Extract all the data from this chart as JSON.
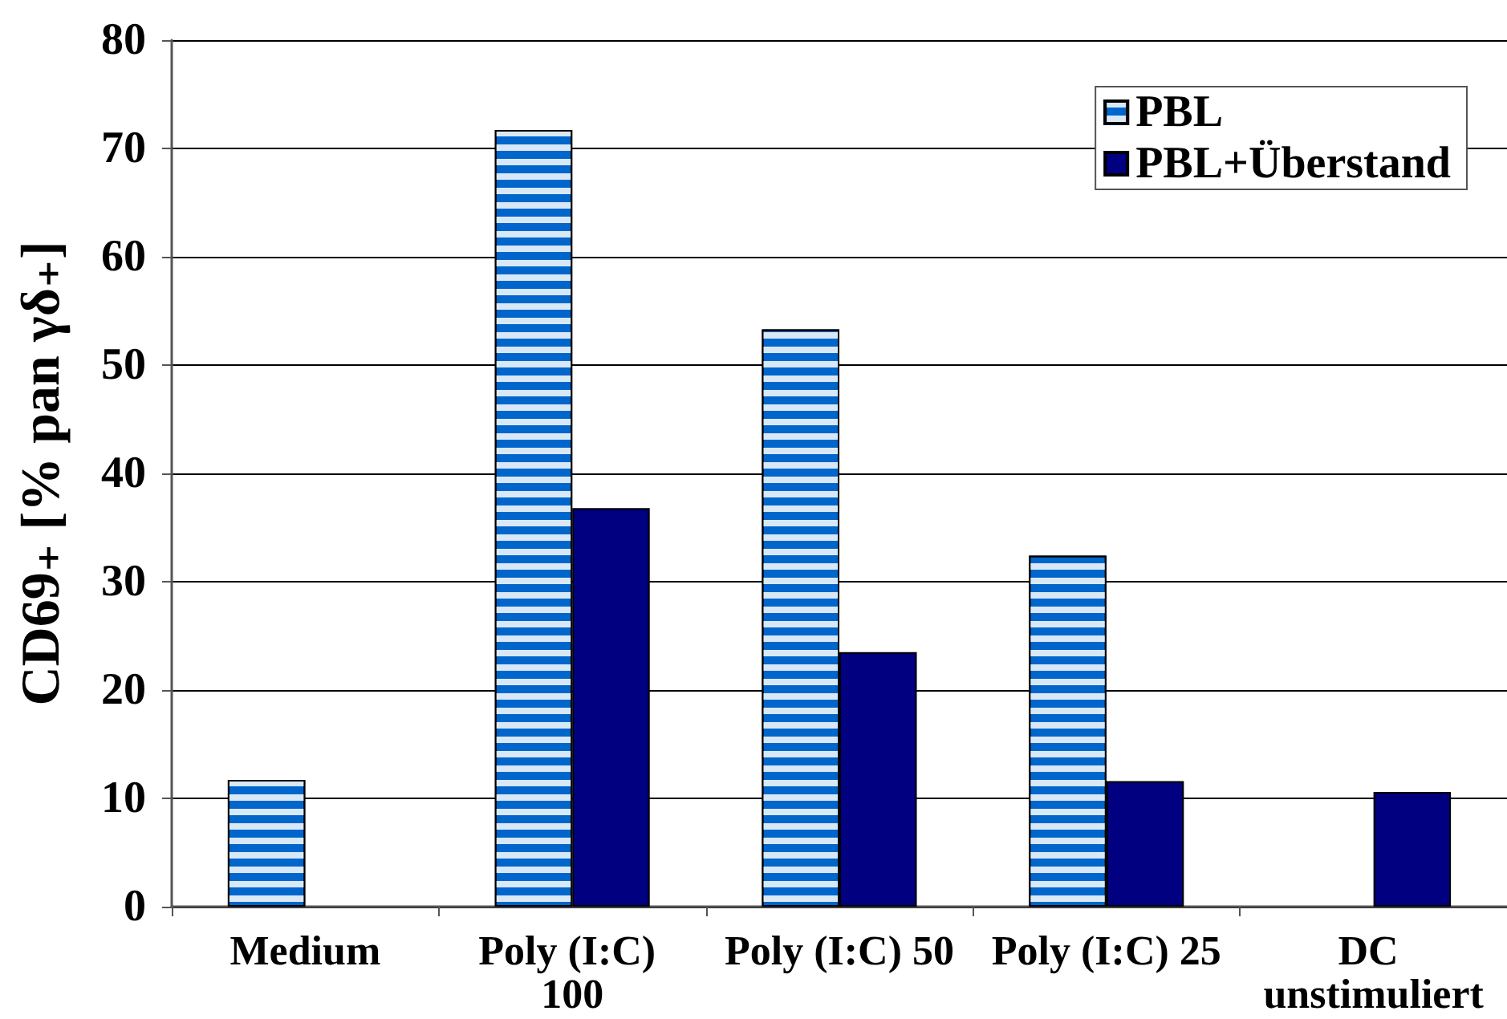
{
  "chart_data": {
    "type": "bar",
    "ylabel": "CD69₊ [% pan γδ₊]",
    "categories": [
      "Medium",
      "Poly (I:C) 100",
      "Poly (I:C) 50",
      "Poly (I:C) 25",
      "DC unstimuliert"
    ],
    "series": [
      {
        "name": "PBL",
        "color": "#0066cc",
        "values": [
          11.7,
          71.7,
          53.3,
          32.4,
          null
        ]
      },
      {
        "name": "PBL+Überstand",
        "color": "#000080",
        "values": [
          null,
          36.8,
          23.5,
          11.6,
          10.6
        ]
      }
    ],
    "ylim": [
      0,
      80
    ],
    "yticks": [
      0,
      10,
      20,
      30,
      40,
      50,
      60,
      70,
      80
    ],
    "grid": "y",
    "legend": "top right"
  }
}
